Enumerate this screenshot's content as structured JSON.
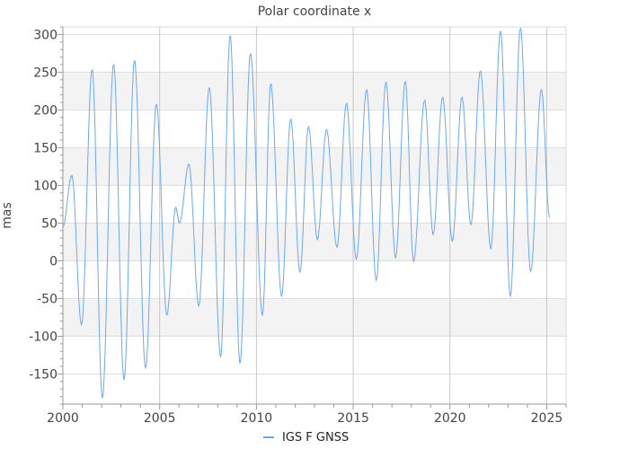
{
  "chart_data": {
    "type": "line",
    "title": "Polar coordinate x",
    "xlabel": "",
    "ylabel": "mas",
    "xlim": [
      2000,
      2026
    ],
    "ylim": [
      -190,
      310
    ],
    "x_ticks": [
      "2000",
      "2005",
      "2010",
      "2015",
      "2020",
      "2025"
    ],
    "y_ticks": [
      "300",
      "250",
      "200",
      "150",
      "100",
      "50",
      "0",
      "-50",
      "-100",
      "-150"
    ],
    "grid": true,
    "shaded_bands": [
      [
        200,
        250
      ],
      [
        100,
        150
      ],
      [
        0,
        50
      ],
      [
        -100,
        -50
      ]
    ],
    "legend": {
      "position": "bottom",
      "entries": [
        "IGS F GNSS"
      ]
    },
    "colors": {
      "series": "#6aaaf2",
      "band": "#f3f3f3",
      "grid": "#dddddd",
      "vgrid": "#c8c8c8"
    },
    "series": [
      {
        "name": "IGS F GNSS",
        "note_points_are_extrema": true,
        "x": [
          2000.0,
          2000.46,
          2000.96,
          2001.51,
          2002.04,
          2002.62,
          2003.16,
          2003.7,
          2004.27,
          2004.83,
          2005.37,
          2005.83,
          2006.02,
          2006.51,
          2007.02,
          2007.56,
          2008.15,
          2008.64,
          2009.15,
          2009.69,
          2010.31,
          2010.74,
          2011.3,
          2011.77,
          2012.25,
          2012.69,
          2013.15,
          2013.62,
          2014.16,
          2014.65,
          2015.16,
          2015.69,
          2016.19,
          2016.69,
          2017.19,
          2017.69,
          2018.12,
          2018.69,
          2019.13,
          2019.62,
          2020.12,
          2020.62,
          2021.08,
          2021.57,
          2022.11,
          2022.61,
          2023.12,
          2023.64,
          2024.17,
          2024.72,
          2025.15
        ],
        "y": [
          45,
          112,
          -85,
          253,
          -182,
          260,
          -158,
          265,
          -142,
          207,
          -72,
          70,
          50,
          127,
          -60,
          229,
          -127,
          298,
          -136,
          274,
          -72,
          234,
          -47,
          187,
          -15,
          177,
          28,
          173,
          18,
          208,
          2,
          226,
          -26,
          236,
          4,
          237,
          -1,
          212,
          35,
          216,
          26,
          216,
          48,
          251,
          16,
          304,
          -47,
          308,
          -14,
          226,
          57
        ]
      }
    ]
  }
}
